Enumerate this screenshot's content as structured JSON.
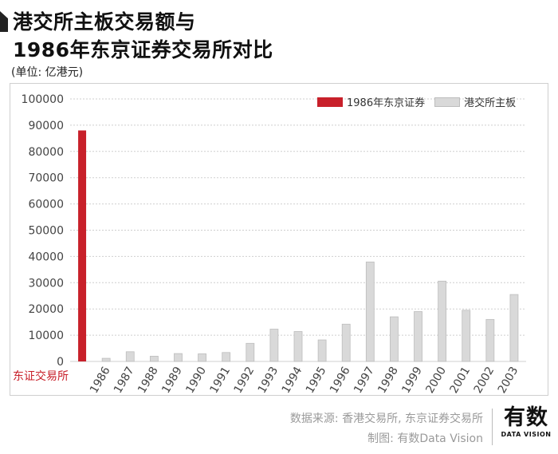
{
  "header": {
    "title_line1": "港交所主板交易额与",
    "title_line2": "1986年东京证券交易所对比",
    "unit": "(单位: 亿港元)"
  },
  "colors": {
    "tokyo": "#c8202a",
    "hkex": "#d9d9d9",
    "hkex_stroke": "#bdbdbd",
    "grid": "#cfcfcf",
    "tick_text": "#444444"
  },
  "chart_data": {
    "type": "bar",
    "ylim": [
      0,
      100000
    ],
    "yticks": [
      0,
      10000,
      20000,
      30000,
      40000,
      50000,
      60000,
      70000,
      80000,
      90000,
      100000
    ],
    "ytick_labels": [
      "0",
      "10000",
      "20000",
      "30000",
      "40000",
      "50000",
      "60000",
      "70000",
      "80000",
      "90000",
      "100000"
    ],
    "grid": true,
    "legend_position": "top-right",
    "categories": [
      "东证交易所",
      "1986",
      "1987",
      "1988",
      "1989",
      "1990",
      "1991",
      "1992",
      "1993",
      "1994",
      "1995",
      "1996",
      "1997",
      "1998",
      "1999",
      "2000",
      "2001",
      "2002",
      "2003"
    ],
    "series": [
      {
        "name": "1986年东京证券",
        "values": [
          88000,
          null,
          null,
          null,
          null,
          null,
          null,
          null,
          null,
          null,
          null,
          null,
          null,
          null,
          null,
          null,
          null,
          null,
          null
        ]
      },
      {
        "name": "港交所主板",
        "values": [
          null,
          1200,
          3700,
          2000,
          3000,
          2900,
          3400,
          6900,
          12300,
          11400,
          8200,
          14200,
          37900,
          17000,
          19000,
          30600,
          19500,
          16000,
          25500
        ]
      }
    ]
  },
  "source": {
    "line1": "数据来源: 香港交易所, 东京证券交易所",
    "line2": "制图: 有数Data Vision"
  },
  "brand": {
    "cn": "有数",
    "en": "DATA VISION"
  }
}
